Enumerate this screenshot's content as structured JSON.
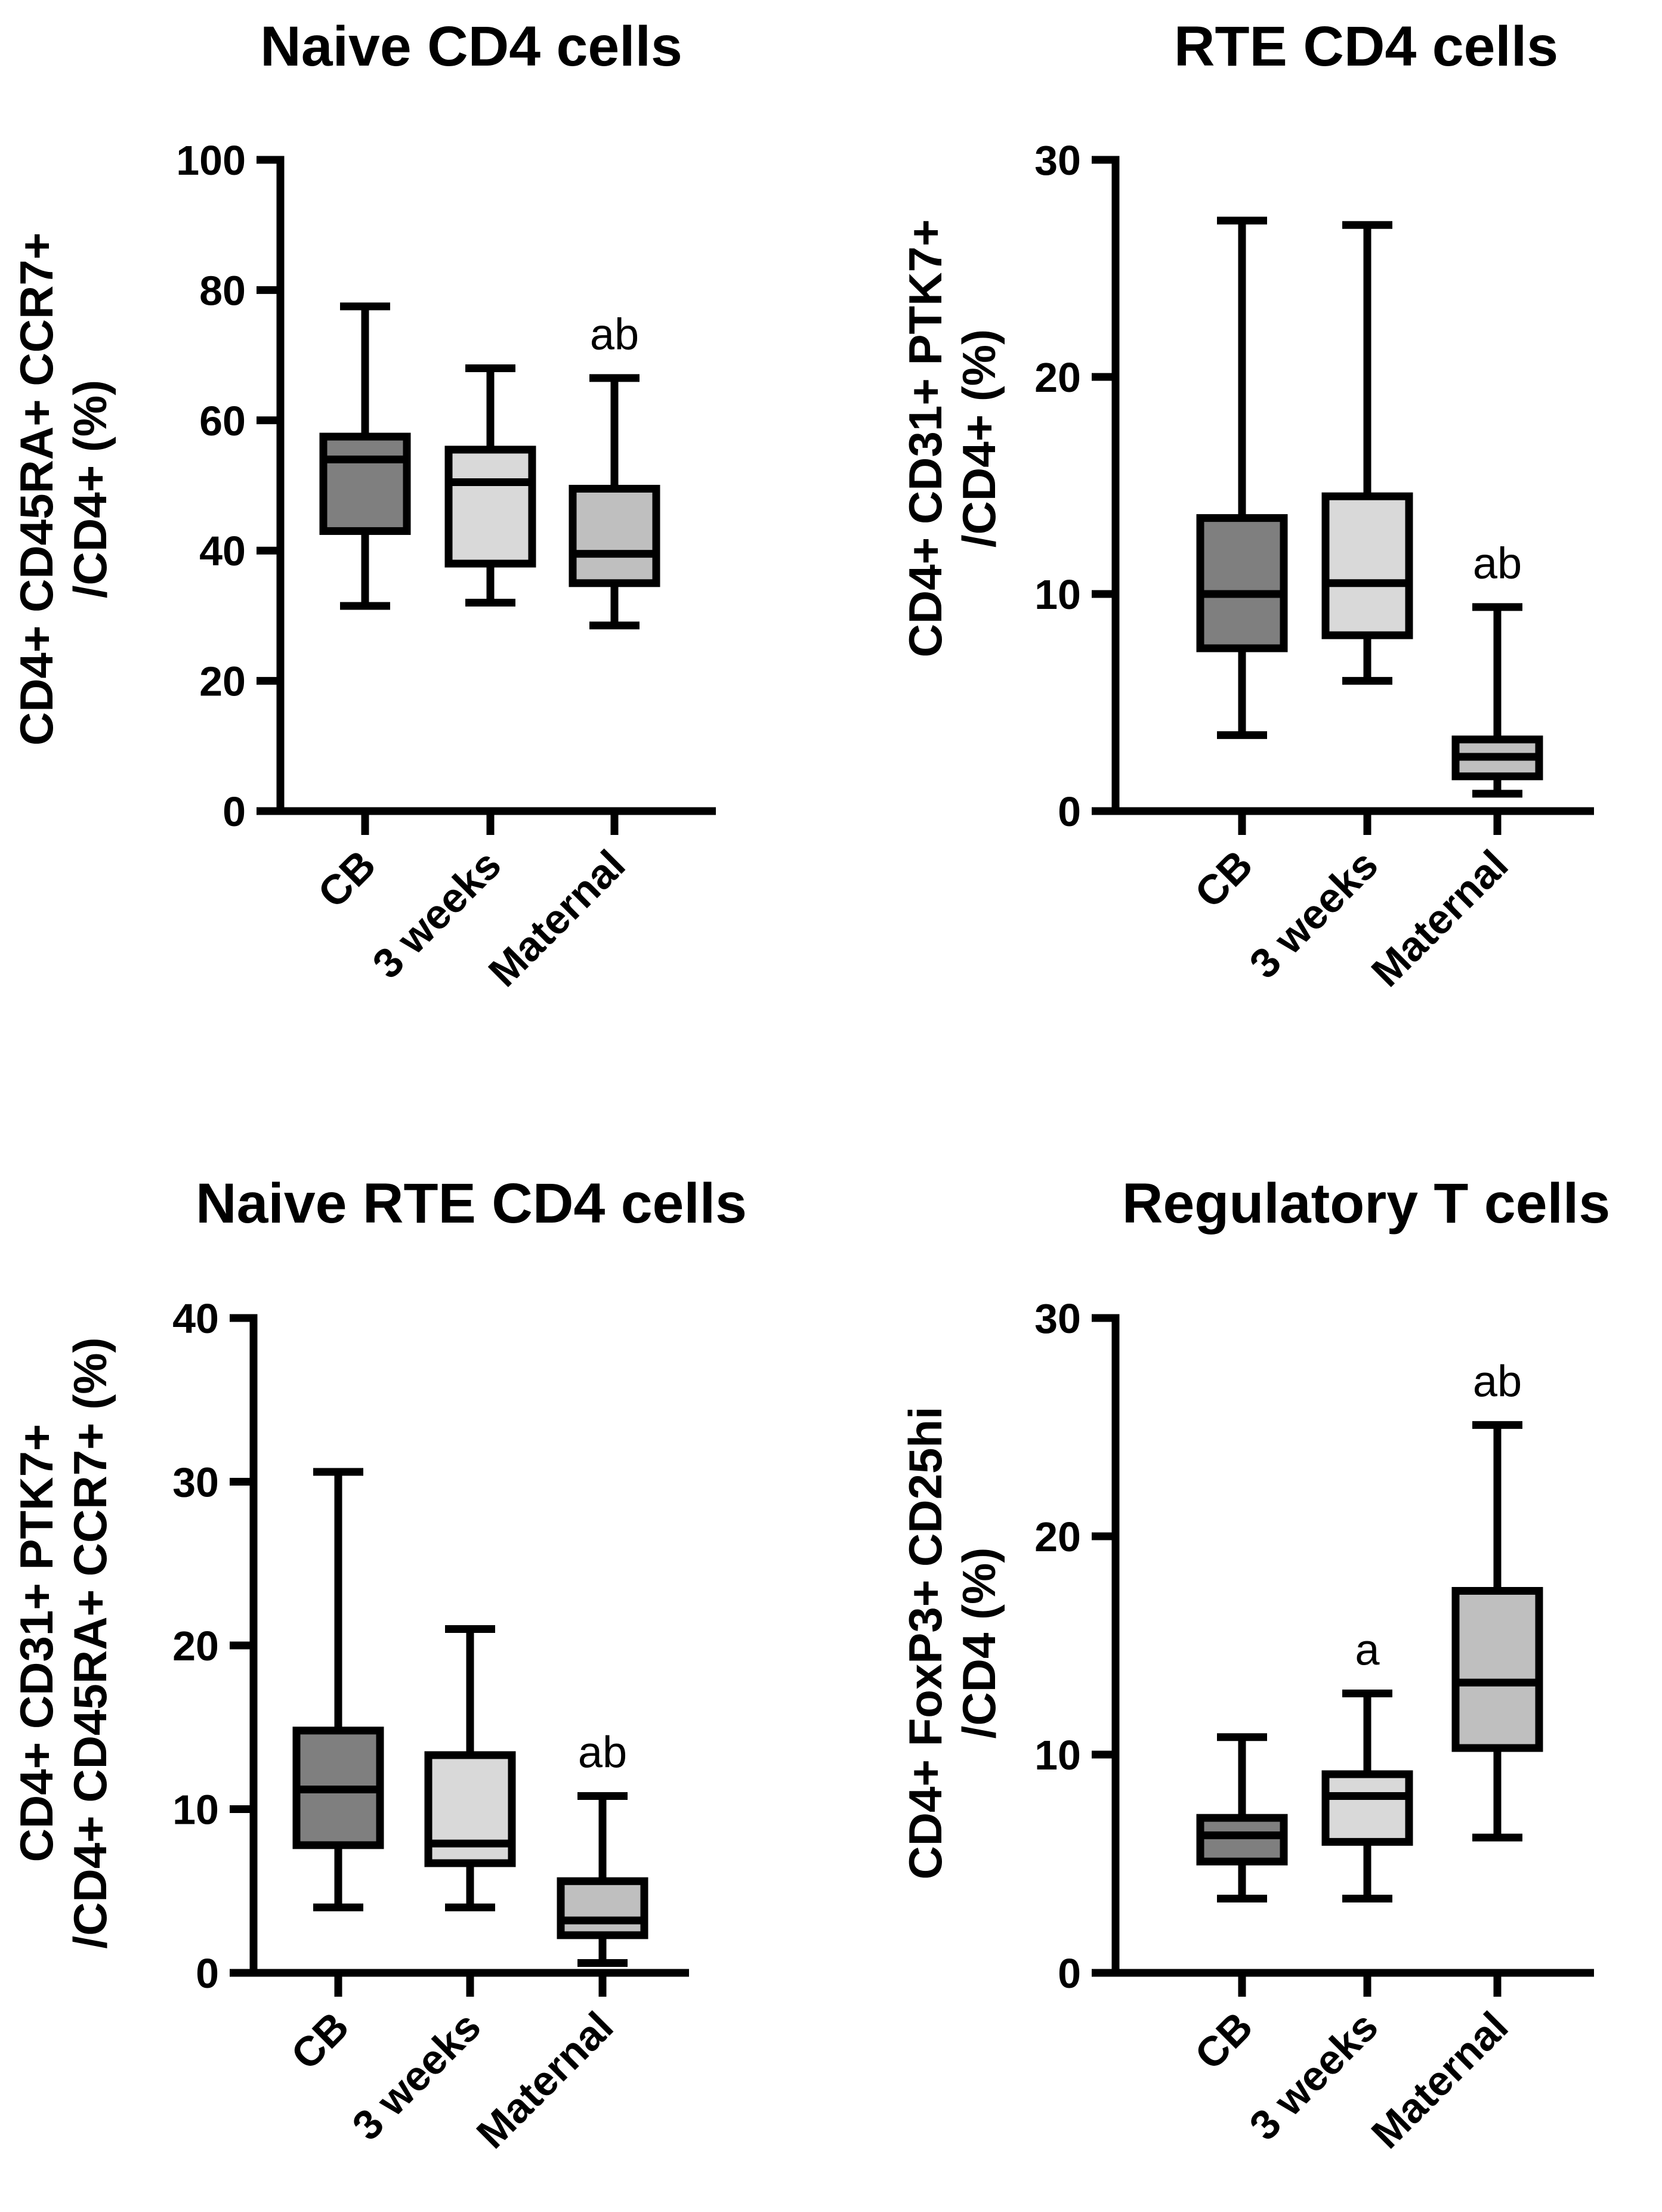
{
  "chart_data": [
    {
      "type": "box",
      "title": "Naive CD4 cells",
      "ylabel": [
        "CD4+ CD45RA+ CCR7+",
        "/CD4+ (%)"
      ],
      "categories": [
        "CB",
        "3 weeks",
        "Maternal"
      ],
      "ylim": [
        0,
        100
      ],
      "yticks": [
        0,
        20,
        40,
        60,
        80,
        100
      ],
      "series": [
        {
          "name": "CB",
          "min": 31.5,
          "q1": 43,
          "median": 54,
          "q3": 57.5,
          "max": 77.5,
          "color": "#7f7f7f"
        },
        {
          "name": "3 weeks",
          "min": 32,
          "q1": 38,
          "median": 50.5,
          "q3": 55.5,
          "max": 68,
          "color": "#d9d9d9"
        },
        {
          "name": "Maternal",
          "min": 28.5,
          "q1": 35,
          "median": 39.5,
          "q3": 49.5,
          "max": 66.5,
          "color": "#bfbfbf"
        }
      ],
      "annotations": [
        "",
        "",
        "ab"
      ]
    },
    {
      "type": "box",
      "title": "RTE CD4 cells",
      "ylabel": [
        "CD4+ CD31+ PTK7+",
        "/CD4+ (%)"
      ],
      "categories": [
        "CB",
        "3 weeks",
        "Maternal"
      ],
      "ylim": [
        0,
        30
      ],
      "yticks": [
        0,
        10,
        20,
        30
      ],
      "series": [
        {
          "name": "CB",
          "min": 3.5,
          "q1": 7.5,
          "median": 10,
          "q3": 13.5,
          "max": 27.2,
          "color": "#7f7f7f"
        },
        {
          "name": "3 weeks",
          "min": 6,
          "q1": 8.1,
          "median": 10.5,
          "q3": 14.5,
          "max": 27,
          "color": "#d9d9d9"
        },
        {
          "name": "Maternal",
          "min": 0.8,
          "q1": 1.6,
          "median": 2.5,
          "q3": 3.3,
          "max": 9.4,
          "color": "#bfbfbf"
        }
      ],
      "annotations": [
        "",
        "",
        "ab"
      ]
    },
    {
      "type": "box",
      "title": "Naive RTE CD4 cells",
      "ylabel": [
        "CD4+ CD31+ PTK7+",
        "/CD4+ CD45RA+ CCR7+ (%)"
      ],
      "categories": [
        "CB",
        "3 weeks",
        "Maternal"
      ],
      "ylim": [
        0,
        40
      ],
      "yticks": [
        0,
        10,
        20,
        30,
        40
      ],
      "series": [
        {
          "name": "CB",
          "min": 4,
          "q1": 7.8,
          "median": 11.2,
          "q3": 14.8,
          "max": 30.6,
          "color": "#7f7f7f"
        },
        {
          "name": "3 weeks",
          "min": 4,
          "q1": 6.7,
          "median": 7.9,
          "q3": 13.3,
          "max": 21,
          "color": "#d9d9d9"
        },
        {
          "name": "Maternal",
          "min": 0.6,
          "q1": 2.3,
          "median": 3.2,
          "q3": 5.6,
          "max": 10.8,
          "color": "#bfbfbf"
        }
      ],
      "annotations": [
        "",
        "",
        "ab"
      ]
    },
    {
      "type": "box",
      "title": "Regulatory T cells",
      "ylabel": [
        "CD4+ FoxP3+ CD25hi",
        "/CD4 (%)"
      ],
      "categories": [
        "CB",
        "3 weeks",
        "Maternal"
      ],
      "ylim": [
        0,
        30
      ],
      "yticks": [
        0,
        10,
        20,
        30
      ],
      "series": [
        {
          "name": "CB",
          "min": 3.4,
          "q1": 5.1,
          "median": 6.3,
          "q3": 7.1,
          "max": 10.8,
          "color": "#7f7f7f"
        },
        {
          "name": "3 weeks",
          "min": 3.4,
          "q1": 6,
          "median": 8.1,
          "q3": 9.1,
          "max": 12.8,
          "color": "#d9d9d9"
        },
        {
          "name": "Maternal",
          "min": 6.2,
          "q1": 10.3,
          "median": 13.3,
          "q3": 17.5,
          "max": 25.1,
          "color": "#bfbfbf"
        }
      ],
      "annotations": [
        "",
        "a",
        "ab"
      ]
    }
  ]
}
